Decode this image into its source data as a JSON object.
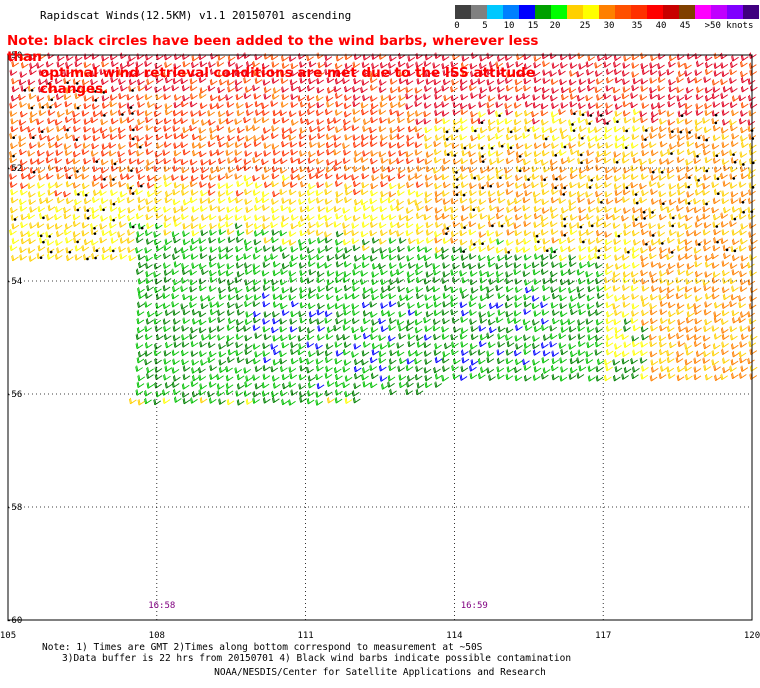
{
  "title": "Rapidscat Winds(12.5KM) v1.1 20150701 ascending",
  "note": {
    "line1": "Note: black circles have been added to the wind barbs, wherever less than",
    "line2": "optimal wind retrieval conditions are met due to the ISS attitude changes."
  },
  "legend": {
    "labels": [
      "0",
      "5",
      "10",
      "15",
      "20",
      "25",
      "30",
      "35",
      "40",
      "45",
      ">50 knots"
    ],
    "colors": [
      "#404040",
      "#808080",
      "#00c8ff",
      "#0080ff",
      "#0000ff",
      "#00a000",
      "#00ff00",
      "#ffd000",
      "#ffff00",
      "#ff8000",
      "#ff5000",
      "#ff3000",
      "#ff0000",
      "#c80000",
      "#804000",
      "#ff00ff",
      "#c000ff",
      "#8000ff",
      "#400080"
    ]
  },
  "axes": {
    "lon_labels": [
      "105",
      "108",
      "111",
      "114",
      "117",
      "120"
    ],
    "lon_values": [
      105,
      108,
      111,
      114,
      117,
      120
    ],
    "lat_labels": [
      "-50",
      "-52",
      "-54",
      "-56",
      "-58",
      "-60"
    ],
    "lat_values": [
      -50,
      -52,
      -54,
      -56,
      -58,
      -60
    ]
  },
  "pass_times": [
    {
      "label": "16:58",
      "lon": 108.1
    },
    {
      "label": "16:59",
      "lon": 114.4
    }
  ],
  "footer": {
    "line1": "Note: 1) Times are GMT 2)Times along bottom correspond to measurement at ~50S",
    "line2": "3)Data buffer is 22 hrs from 20150701 4) Black wind barbs indicate possible contamination",
    "line3": "NOAA/NESDIS/Center for Satellite Applications and Research"
  }
}
